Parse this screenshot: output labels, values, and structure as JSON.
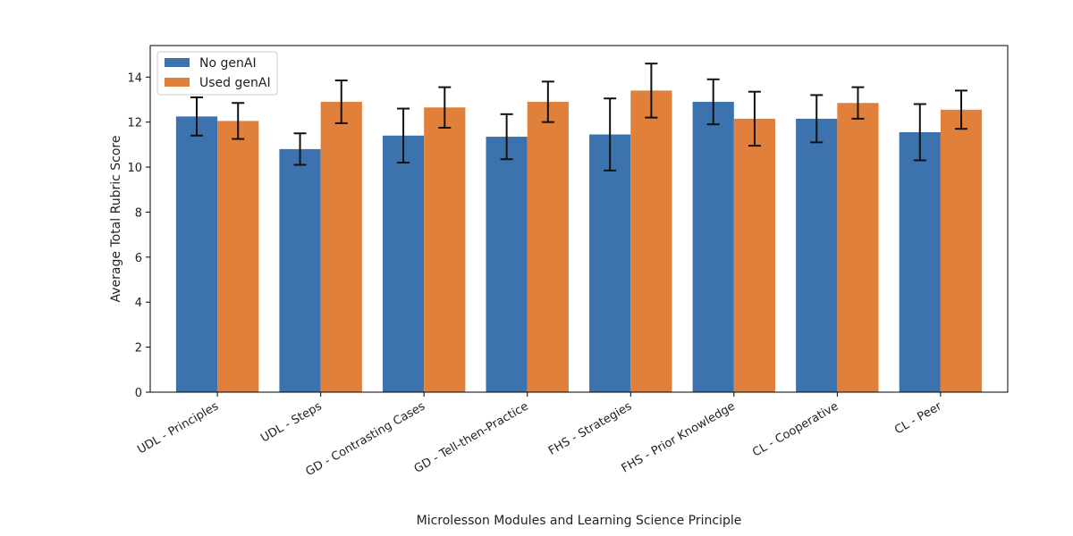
{
  "chart_data": {
    "type": "bar",
    "title": "",
    "xlabel": "Microlesson Modules and Learning Science Principle",
    "ylabel": "Average Total Rubric Score",
    "ylim": [
      0,
      15.4
    ],
    "yticks": [
      0,
      2,
      4,
      6,
      8,
      10,
      12,
      14
    ],
    "grid": false,
    "legend_position": "top-left",
    "categories": [
      "UDL - Principles",
      "UDL - Steps",
      "GD - Contrasting Cases",
      "GD - Tell-then-Practice",
      "FHS - Strategies",
      "FHS - Prior Knowledge",
      "CL - Cooperative",
      "CL - Peer"
    ],
    "series": [
      {
        "name": "No genAI",
        "color": "#3c73ae",
        "values": [
          12.25,
          10.8,
          11.4,
          11.35,
          11.45,
          12.9,
          12.15,
          11.55
        ],
        "errors": [
          0.85,
          0.7,
          1.2,
          1.0,
          1.6,
          1.0,
          1.05,
          1.25
        ]
      },
      {
        "name": "Used genAI",
        "color": "#e0803a",
        "values": [
          12.05,
          12.9,
          12.65,
          12.9,
          13.4,
          12.15,
          12.85,
          12.55
        ],
        "errors": [
          0.8,
          0.95,
          0.9,
          0.9,
          1.2,
          1.2,
          0.7,
          0.85
        ]
      }
    ]
  }
}
